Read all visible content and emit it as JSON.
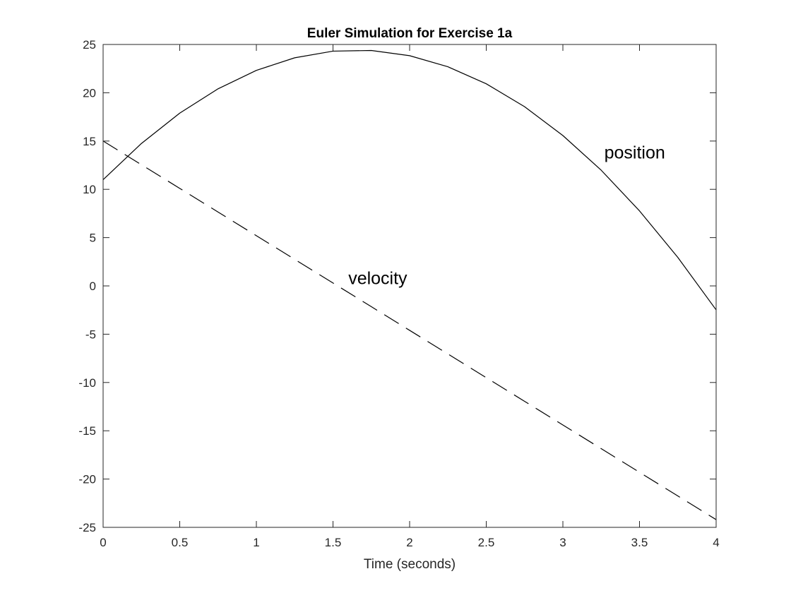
{
  "chart_data": {
    "type": "line",
    "title": "Euler Simulation for Exercise 1a",
    "xlabel": "Time (seconds)",
    "ylabel": "",
    "xlim": [
      0,
      4
    ],
    "ylim": [
      -25,
      25
    ],
    "xticks": [
      0,
      0.5,
      1,
      1.5,
      2,
      2.5,
      3,
      3.5,
      4
    ],
    "xtick_labels": [
      "0",
      "0.5",
      "1",
      "1.5",
      "2",
      "2.5",
      "3",
      "3.5",
      "4"
    ],
    "yticks": [
      -25,
      -20,
      -15,
      -10,
      -5,
      0,
      5,
      10,
      15,
      20,
      25
    ],
    "ytick_labels": [
      "-25",
      "-20",
      "-15",
      "-10",
      "-5",
      "0",
      "5",
      "10",
      "15",
      "20",
      "25"
    ],
    "grid": false,
    "legend": false,
    "x": [
      0,
      0.25,
      0.5,
      0.75,
      1,
      1.25,
      1.5,
      1.75,
      2,
      2.25,
      2.5,
      2.75,
      3,
      3.25,
      3.5,
      3.75,
      4
    ],
    "series": [
      {
        "style": "solid",
        "color": "#000000",
        "values": [
          11,
          14.75,
          17.89,
          20.41,
          22.32,
          23.62,
          24.31,
          24.38,
          23.84,
          22.69,
          20.93,
          18.56,
          15.57,
          11.98,
          7.77,
          2.95,
          -2.48
        ]
      },
      {
        "style": "dashed",
        "color": "#000000",
        "values": [
          15,
          12.55,
          10.1,
          7.65,
          5.2,
          2.75,
          0.3,
          -2.15,
          -4.6,
          -7.05,
          -9.5,
          -11.95,
          -14.4,
          -16.85,
          -19.3,
          -21.75,
          -24.2
        ]
      }
    ],
    "annotations": [
      {
        "text": "position",
        "x": 3.27,
        "y": 13.2
      },
      {
        "text": "velocity",
        "x": 1.6,
        "y": 0.2
      }
    ]
  }
}
